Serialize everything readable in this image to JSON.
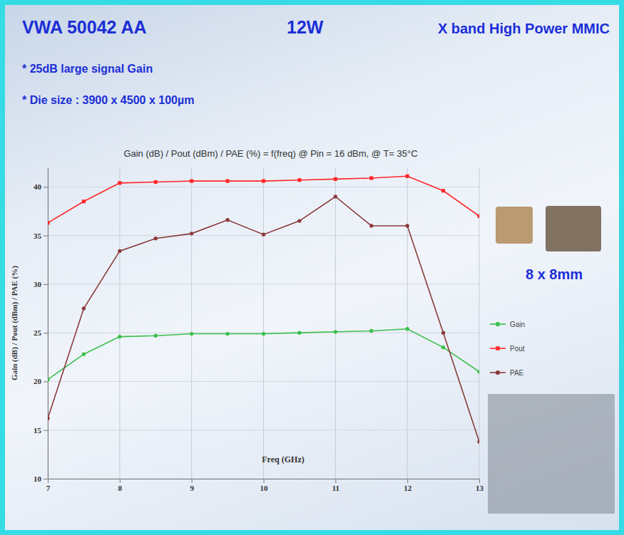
{
  "page": {
    "title": "VWA 50042 AA",
    "power": "12W",
    "subtitle": "X band High Power MMIC",
    "bullets": [
      "* 25dB large signal Gain",
      "* Die size : 3900 x 4500 x 100µm"
    ],
    "package_label": "8 x 8mm"
  },
  "chart_data": {
    "type": "line",
    "title": "Gain (dB) / Pout (dBm) / PAE (%) = f(freq) @ Pin = 16 dBm, @ T= 35°C",
    "x_label": "Freq (GHz)",
    "y_label": "Gain (dB) / Pout (dBm) / PAE (%)",
    "x": [
      7,
      7.5,
      8,
      8.5,
      9,
      9.5,
      10,
      10.5,
      11,
      11.5,
      12,
      12.5,
      13
    ],
    "series": [
      {
        "name": "Gain",
        "color": "#3cbf4a",
        "marker": "circle",
        "values": [
          20.2,
          22.8,
          24.6,
          24.7,
          24.9,
          24.9,
          24.9,
          25.0,
          25.1,
          25.2,
          25.4,
          23.5,
          21.0
        ]
      },
      {
        "name": "Pout",
        "color": "#ff2626",
        "marker": "square",
        "values": [
          36.3,
          38.5,
          40.4,
          40.5,
          40.6,
          40.6,
          40.6,
          40.7,
          40.8,
          40.9,
          41.1,
          39.6,
          37.0
        ]
      },
      {
        "name": "PAE",
        "color": "#8b3a3a",
        "marker": "circle",
        "values": [
          16.2,
          27.5,
          33.4,
          34.7,
          35.2,
          36.6,
          35.1,
          36.5,
          39.0,
          36.0,
          36.0,
          25.0,
          13.8
        ]
      }
    ],
    "xlim": [
      7,
      13
    ],
    "xticks": [
      7,
      8,
      9,
      10,
      11,
      12,
      13
    ],
    "ylim": [
      10,
      42
    ],
    "yticks": [
      10,
      15,
      20,
      25,
      30,
      35,
      40
    ],
    "grid": true,
    "legend": "right"
  }
}
